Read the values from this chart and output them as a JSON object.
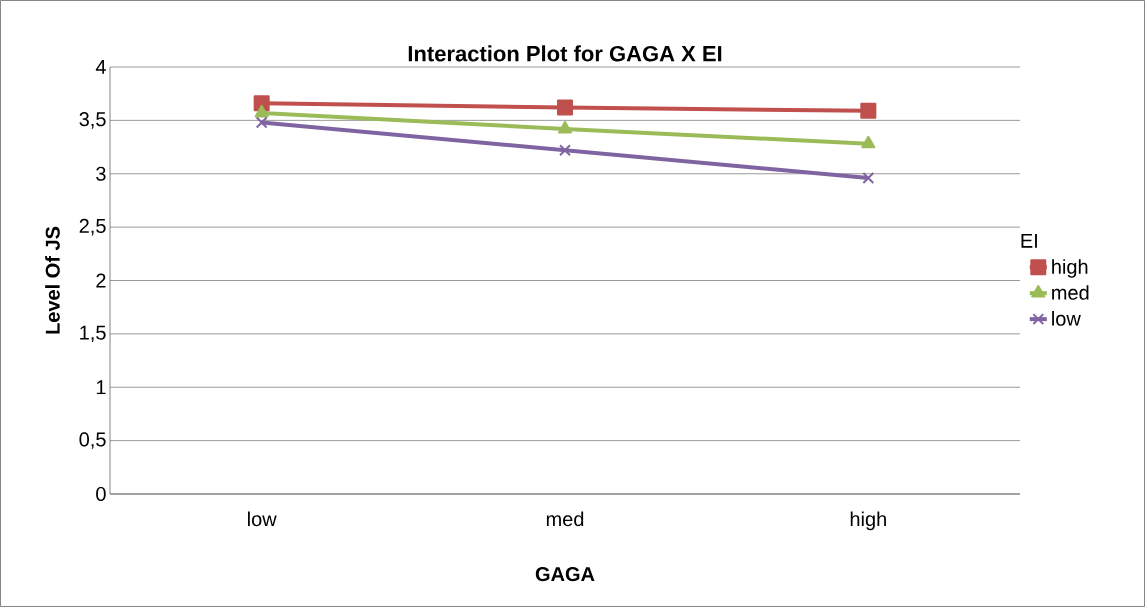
{
  "chart_data": {
    "type": "line",
    "title": "Interaction Plot for GAGA X EI",
    "xlabel": "GAGA",
    "ylabel": "Level Of JS",
    "legend_title": "EI",
    "categories": [
      "low",
      "med",
      "high"
    ],
    "series": [
      {
        "name": "high",
        "color": "#c0504d",
        "marker": "square",
        "values": [
          3.66,
          3.62,
          3.59
        ]
      },
      {
        "name": "med",
        "color": "#9bbb59",
        "marker": "triangle",
        "values": [
          3.57,
          3.42,
          3.28
        ]
      },
      {
        "name": "low",
        "color": "#8064a2",
        "marker": "cross",
        "values": [
          3.48,
          3.22,
          2.96
        ]
      }
    ],
    "ylim": [
      0,
      4
    ],
    "yticks": [
      0,
      {
        "value": 0.5,
        "label": "0,5"
      },
      1,
      {
        "value": 1.5,
        "label": "1,5"
      },
      2,
      {
        "value": 2.5,
        "label": "2,5"
      },
      3,
      {
        "value": 3.5,
        "label": "3,5"
      },
      4
    ],
    "grid": "y",
    "legend": "right",
    "line_style": "solid"
  }
}
